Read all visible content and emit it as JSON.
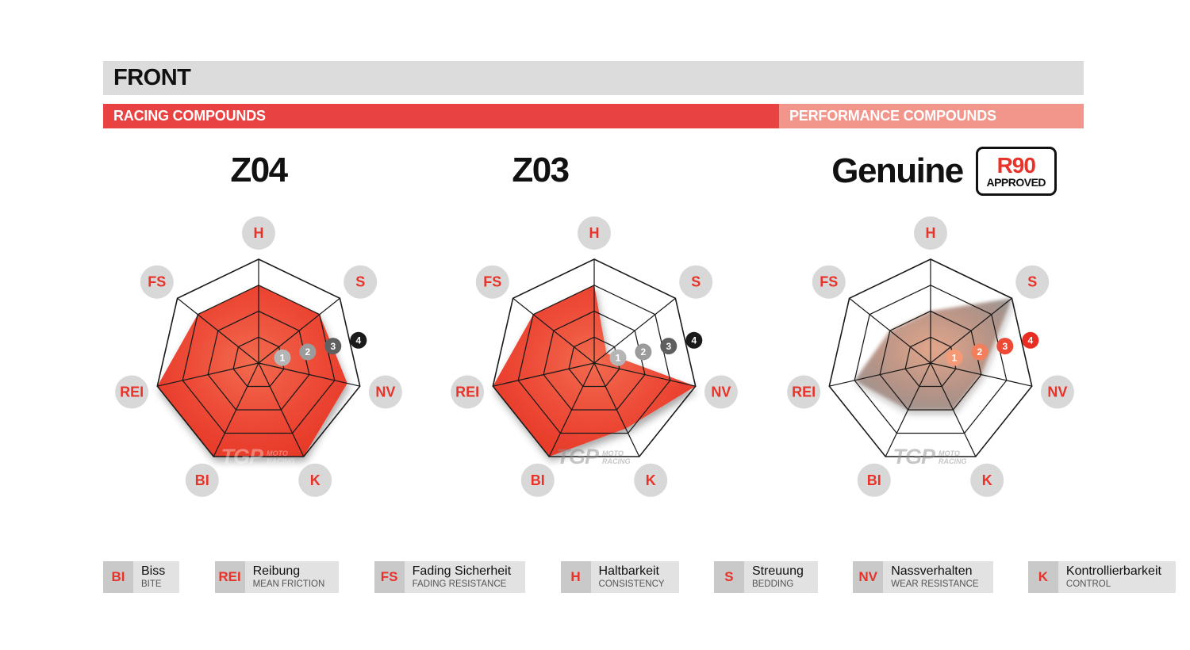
{
  "header": {
    "title": "FRONT",
    "racing_label": "RACING COMPOUNDS",
    "performance_label": "PERFORMANCE COMPOUNDS"
  },
  "colors": {
    "header_bg": "#dcdcdc",
    "racing_banner": "#e94242",
    "performance_banner": "#f2958b",
    "accent_red": "#e8332a",
    "label_circle": "#d8d8d8",
    "legend_abbr_bg": "#c9c9c9",
    "legend_text_bg": "#e2e2e2",
    "web_line": "#1a1a1a"
  },
  "watermark": {
    "main": "TGP",
    "sub1": "MOTO",
    "sub2": "RACING"
  },
  "legend": [
    {
      "abbr": "BI",
      "de": "Biss",
      "en": "BITE"
    },
    {
      "abbr": "REI",
      "de": "Reibung",
      "en": "MEAN FRICTION"
    },
    {
      "abbr": "FS",
      "de": "Fading Sicherheit",
      "en": "FADING RESISTANCE"
    },
    {
      "abbr": "H",
      "de": "Haltbarkeit",
      "en": "CONSISTENCY"
    },
    {
      "abbr": "S",
      "de": "Streuung",
      "en": "BEDDING"
    },
    {
      "abbr": "NV",
      "de": "Nassverhalten",
      "en": "WEAR RESISTANCE"
    },
    {
      "abbr": "K",
      "de": "Kontrollierbarkeit",
      "en": "CONTROL"
    }
  ],
  "chart_data": [
    {
      "type": "radar",
      "title": "Z04",
      "group": "RACING COMPOUNDS",
      "axes": [
        "H",
        "S",
        "NV",
        "K",
        "BI",
        "REI",
        "FS"
      ],
      "values": [
        3,
        3,
        3.5,
        4,
        4,
        4,
        3
      ],
      "scale_ticks": [
        1,
        2,
        3,
        4
      ],
      "scale_max": 4,
      "fill_style": "red",
      "fill_gradient": [
        "#f26a4e",
        "#ec4634",
        "#e23120"
      ],
      "marker_colors": [
        "#b5b5b5",
        "#9b9b9b",
        "#5f5f5f",
        "#1a1a1a"
      ],
      "watermark_color": "#ffffff"
    },
    {
      "type": "radar",
      "title": "Z03",
      "group": "RACING COMPOUNDS",
      "axes": [
        "H",
        "S",
        "NV",
        "K",
        "BI",
        "REI",
        "FS"
      ],
      "values": [
        3,
        0.6,
        4,
        2.8,
        4,
        4,
        3
      ],
      "scale_ticks": [
        1,
        2,
        3,
        4
      ],
      "scale_max": 4,
      "fill_style": "red",
      "fill_gradient": [
        "#f26a4e",
        "#ec4634",
        "#e23120"
      ],
      "marker_colors": [
        "#b5b5b5",
        "#9b9b9b",
        "#5f5f5f",
        "#1a1a1a"
      ],
      "watermark_color": "#8f8f8f"
    },
    {
      "type": "radar",
      "title": "Genuine",
      "badge": {
        "top": "R90",
        "bottom": "APPROVED"
      },
      "group": "PERFORMANCE COMPOUNDS",
      "axes": [
        "H",
        "S",
        "NV",
        "K",
        "BI",
        "REI",
        "FS"
      ],
      "values": [
        2,
        4,
        2,
        2,
        2,
        3,
        2
      ],
      "scale_ticks": [
        1,
        2,
        3,
        4
      ],
      "scale_max": 4,
      "fill_style": "gray",
      "fill_gradient": [
        "#e2a284",
        "#b18d80",
        "#8d8d8d"
      ],
      "marker_colors": [
        "#f59a76",
        "#f37e5c",
        "#ee4934",
        "#e92d20"
      ],
      "watermark_color": "#8f8f8f"
    }
  ]
}
